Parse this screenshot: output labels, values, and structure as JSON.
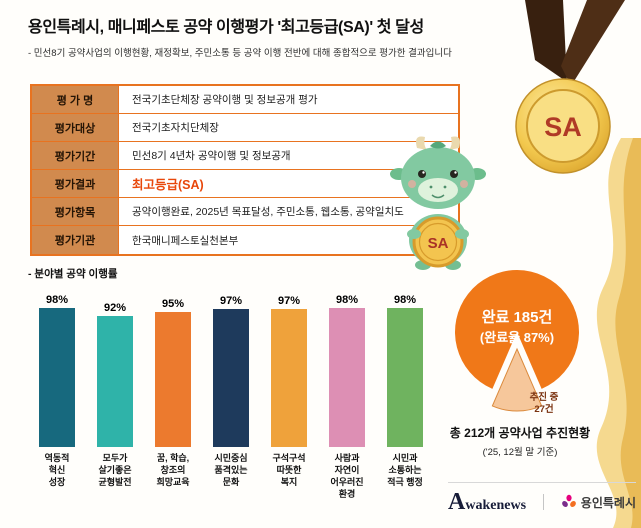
{
  "header": {
    "title": "용인특례시, 매니페스토 공약 이행평가 '최고등급(SA)' 첫 달성",
    "subtitle": "- 민선8기 공약사업의 이행현황, 재정확보, 주민소통 등 공약 이행 전반에 대해 종합적으로 평가한 결과입니다"
  },
  "medal": {
    "label": "SA"
  },
  "mascot": {
    "coin_label": "SA"
  },
  "table": {
    "rows": [
      {
        "label": "평 가 명",
        "value": "전국기초단체장 공약이행 및 정보공개 평가",
        "highlight": false
      },
      {
        "label": "평가대상",
        "value": "전국기초자치단체장",
        "highlight": false
      },
      {
        "label": "평가기간",
        "value": "민선8기 4년차 공약이행 및 정보공개",
        "highlight": false
      },
      {
        "label": "평가결과",
        "value": "최고등급(SA)",
        "highlight": true
      },
      {
        "label": "평가항목",
        "value": "공약이행완료, 2025년 목표달성, 주민소통, 웹소통, 공약일치도",
        "highlight": false
      },
      {
        "label": "평가기관",
        "value": "한국매니페스토실천본부",
        "highlight": false
      }
    ]
  },
  "chart_section_label": "- 분야별 공약 이행률",
  "chart_data": [
    {
      "type": "bar",
      "title": "분야별 공약 이행률",
      "categories": [
        "역동적 혁신 성장",
        "모두가 살기좋은 균형발전",
        "꿈, 학습, 창조의 희망교육",
        "시민중심 품격있는 문화",
        "구석구석 따뜻한 복지",
        "사람과 자연이 어우러진 환경",
        "시민과 소통하는 적극 행정"
      ],
      "category_lines": [
        [
          "역동적",
          "혁신",
          "성장"
        ],
        [
          "모두가",
          "살기좋은",
          "균형발전"
        ],
        [
          "꿈, 학습,",
          "창조의",
          "희망교육"
        ],
        [
          "시민중심",
          "품격있는",
          "문화"
        ],
        [
          "구석구석",
          "따뜻한",
          "복지"
        ],
        [
          "사람과",
          "자연이",
          "어우러진",
          "환경"
        ],
        [
          "시민과",
          "소통하는",
          "적극 행정"
        ]
      ],
      "values": [
        98,
        92,
        95,
        97,
        97,
        98,
        98
      ],
      "unit": "%",
      "bar_colors": [
        "#17697E",
        "#2FB3A9",
        "#EC7A2E",
        "#1E3A5C",
        "#EFA23B",
        "#DD8FB4",
        "#6FB35F"
      ],
      "ylim": [
        0,
        100
      ],
      "grid": false,
      "legend": false
    },
    {
      "type": "pie",
      "slices": [
        {
          "label": "완료",
          "count": 185,
          "percent": 87,
          "color": "#F07818"
        },
        {
          "label": "추진 중",
          "count": 27,
          "percent": 13,
          "color": "#F6C79B"
        }
      ],
      "center_text": [
        "완료 185건",
        "(완료율 87%)"
      ],
      "slice_text": [
        "추진 중",
        "27건"
      ],
      "caption": [
        "총 212개 공약사업 추진현황",
        "('25, 12월 말 기준)"
      ]
    }
  ],
  "footer": {
    "news_logo_initial": "A",
    "news_logo_rest": "wakenews",
    "city_name": "용인특례시"
  },
  "colors": {
    "accent_border": "#E87320",
    "table_label_bg": "#D18A4E",
    "highlight_text": "#E8470B",
    "medal_gold": "#F3C94F",
    "ribbon_brown": "#3B2312",
    "pie_main": "#F07818",
    "pie_slice": "#F6C79B"
  }
}
